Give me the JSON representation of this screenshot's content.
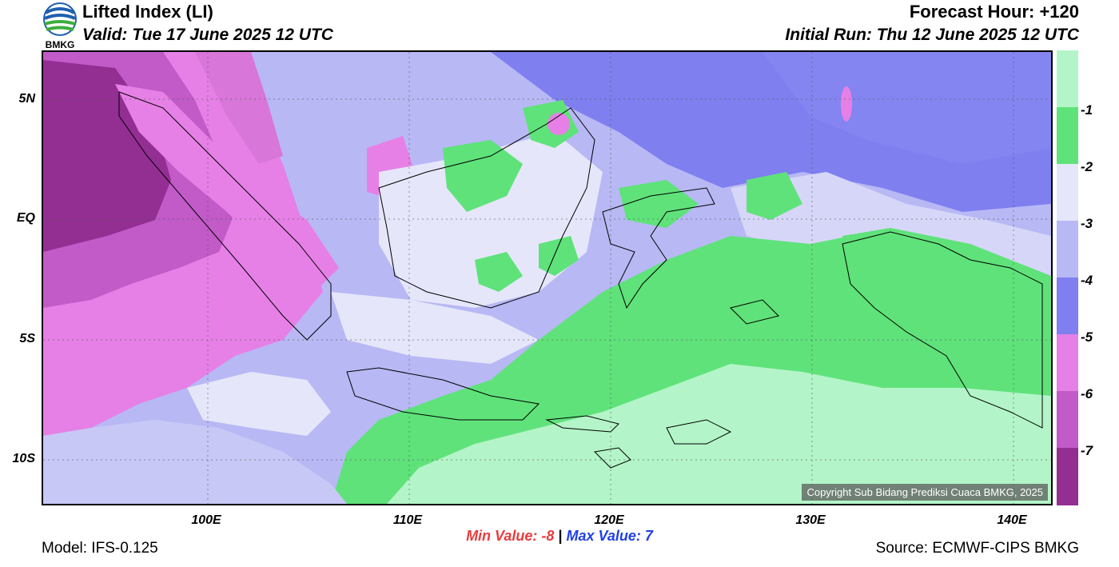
{
  "header": {
    "logo_text": "BMKG",
    "title": "Lifted Index (LI)",
    "valid": "Valid: Tue 17 June 2025 12 UTC",
    "forecast_hour": "Forecast Hour: +120",
    "initial_run": "Initial Run: Thu 12 June 2025 12 UTC"
  },
  "map": {
    "lat_labels": [
      "5N",
      "EQ",
      "5S",
      "10S"
    ],
    "lon_labels": [
      "100E",
      "110E",
      "120E",
      "130E",
      "140E"
    ],
    "copyright": "Copyright Sub Bidang Prediksi Cuaca BMKG, 2025"
  },
  "legend": {
    "labels": [
      "-1",
      "-2",
      "-3",
      "-4",
      "-5",
      "-6",
      "-7"
    ],
    "colors": [
      "#b3f5c8",
      "#5fe27a",
      "#e6e6fa",
      "#b8b8f5",
      "#7f7ff0",
      "#e680e6",
      "#c25ac8",
      "#932e93"
    ]
  },
  "footer": {
    "min_label": "Min Value:",
    "min_value": "-8",
    "separator": "|",
    "max_label": "Max Value:",
    "max_value": "7",
    "model": "Model: IFS-0.125",
    "source": "Source: ECMWF-CIPS BMKG"
  }
}
